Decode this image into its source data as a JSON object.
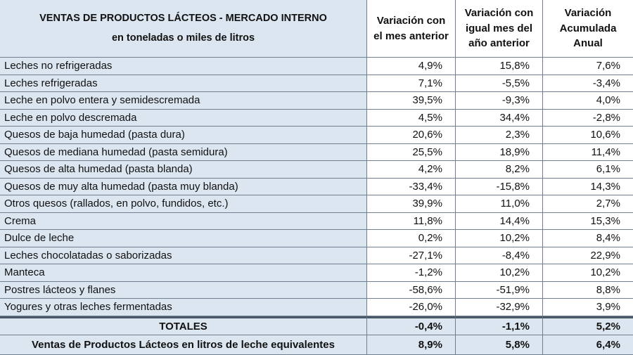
{
  "header": {
    "title": "VENTAS DE PRODUCTOS LÁCTEOS - MERCADO INTERNO",
    "subtitle": "en toneladas o miles de litros",
    "columns": [
      "Variación con el mes anterior",
      "Variación con igual mes del año anterior",
      "Variación Acumulada Anual"
    ]
  },
  "table": {
    "rows": [
      [
        "Leches no refrigeradas",
        "4,9%",
        "15,8%",
        "7,6%"
      ],
      [
        "Leches refrigeradas",
        "7,1%",
        "-5,5%",
        "-3,4%"
      ],
      [
        "Leche en polvo entera y semidescremada",
        "39,5%",
        "-9,3%",
        "4,0%"
      ],
      [
        "Leche en polvo descremada",
        "4,5%",
        "34,4%",
        "-2,8%"
      ],
      [
        "Quesos de baja humedad (pasta dura)",
        "20,6%",
        "2,3%",
        "10,6%"
      ],
      [
        "Quesos de mediana humedad (pasta semidura)",
        "25,5%",
        "18,9%",
        "11,4%"
      ],
      [
        "Quesos de alta humedad (pasta blanda)",
        "4,2%",
        "8,2%",
        "6,1%"
      ],
      [
        "Quesos de muy alta humedad (pasta muy blanda)",
        "-33,4%",
        "-15,8%",
        "14,3%"
      ],
      [
        "Otros quesos (rallados, en polvo, fundidos, etc.)",
        "39,9%",
        "11,0%",
        "2,7%"
      ],
      [
        "Crema",
        "11,8%",
        "14,4%",
        "15,3%"
      ],
      [
        "Dulce de leche",
        "0,2%",
        "10,2%",
        "8,4%"
      ],
      [
        "Leches chocolatadas o saborizadas",
        "-27,1%",
        "-8,4%",
        "22,9%"
      ],
      [
        "Manteca",
        "-1,2%",
        "10,2%",
        "10,2%"
      ],
      [
        "Postres lácteos y flanes",
        "-58,6%",
        "-51,9%",
        "8,8%"
      ],
      [
        "Yogures y otras leches fermentadas",
        "-26,0%",
        "-32,9%",
        "3,9%"
      ]
    ],
    "totals": [
      "TOTALES",
      "-0,4%",
      "-1,1%",
      "5,2%"
    ],
    "equivalent": [
      "Ventas de Productos Lácteos en litros de leche equivalentes",
      "8,9%",
      "5,8%",
      "6,4%"
    ]
  }
}
